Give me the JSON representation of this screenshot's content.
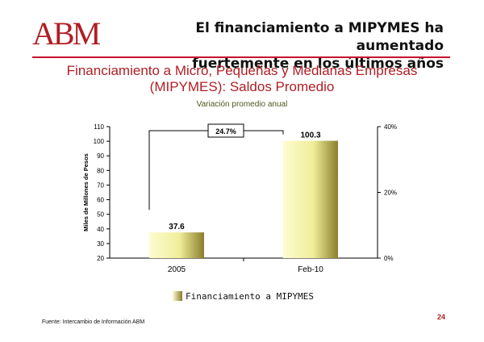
{
  "slide": {
    "logo": "ABM",
    "headline_line1": "El financiamiento a MIPYMES ha aumentado",
    "headline_line2": "fuertemente en los últimos años",
    "subtitle_line1": "Financiamiento a Micro, Pequeñas y Medianas Empresas",
    "subtitle_line2": "(MIPYMES): Saldos Promedio",
    "variation_label": "Variación promedio anual",
    "source": "Fuente:  Intercambio de Información ABM",
    "page_number": "24"
  },
  "chart_data": {
    "type": "bar",
    "categories": [
      "2005",
      "Feb-10"
    ],
    "series": [
      {
        "name": "Financiamiento a MIPYMES",
        "values": [
          37.6,
          100.3
        ],
        "data_labels": [
          "37.6",
          "100.3"
        ]
      }
    ],
    "ylabel": "Miles de Millones de Pesos",
    "ylim": [
      20,
      110
    ],
    "yticks": [
      20,
      30,
      40,
      50,
      60,
      70,
      80,
      90,
      100,
      110
    ],
    "y2lim": [
      0,
      40
    ],
    "y2ticks": [
      "0%",
      "20%",
      "40%"
    ],
    "annotation": "24.7%",
    "legend_position": "bottom",
    "grid": false
  },
  "colors": {
    "accent": "#b01e24",
    "bar_light": "#fcfcd0",
    "bar_dark": "#8a7d2a",
    "variation_text": "#4d5a1e"
  }
}
